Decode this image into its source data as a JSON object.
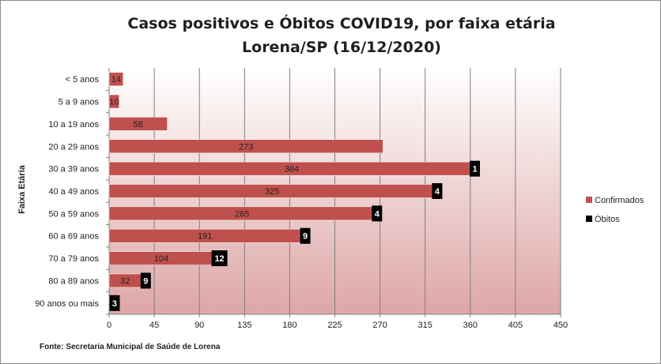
{
  "chart_data": {
    "type": "bar",
    "orientation": "horizontal",
    "title": "Casos positivos e Óbitos COVID19, por faixa etária",
    "subtitle": "Lorena/SP (16/12/2020)",
    "ylabel": "Faixa Etária",
    "xlabel": "",
    "categories": [
      "< 5 anos",
      "5 a 9 anos",
      "10 a 19 anos",
      "20 a 29 anos",
      "30 a 39 anos",
      "40 a 49 anos",
      "50 a 59 anos",
      "60 a 69 anos",
      "70 a 79 anos",
      "80 a 89 anos",
      "90 anos ou mais"
    ],
    "series": [
      {
        "name": "Confirmados",
        "color": "#c0504d",
        "values": [
          14,
          10,
          58,
          273,
          364,
          325,
          265,
          191,
          104,
          32,
          4
        ]
      },
      {
        "name": "Óbitos",
        "color": "#000000",
        "values": [
          null,
          null,
          null,
          null,
          1,
          4,
          4,
          9,
          12,
          9,
          3
        ]
      }
    ],
    "xlim": [
      0,
      450
    ],
    "xticks": [
      0,
      45,
      90,
      135,
      180,
      225,
      270,
      315,
      360,
      405,
      450
    ],
    "grid": true,
    "legend_position": "right",
    "source": "Fonte: Secretaria Municipal  de Saúde de Lorena"
  }
}
